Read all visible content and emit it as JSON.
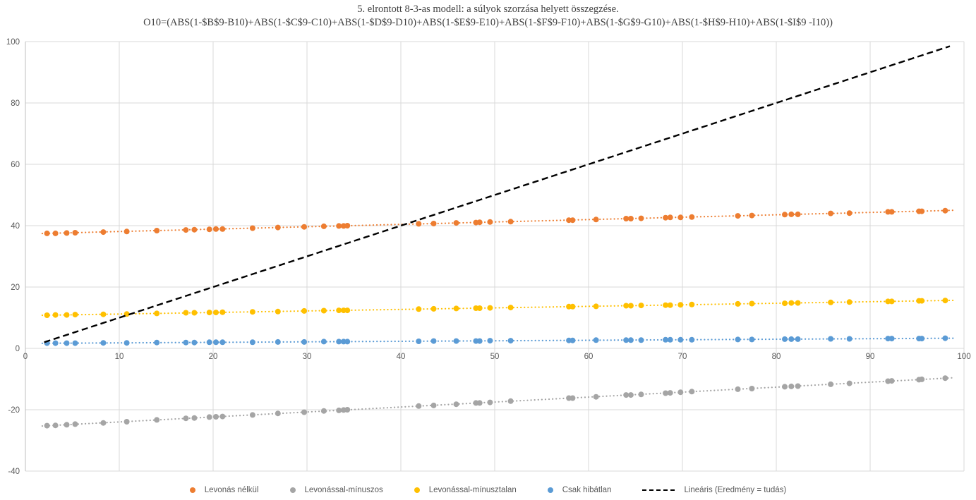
{
  "title": {
    "line1": "5. elrontott 8-3-as modell: a súlyok szorzása helyett összegzése.",
    "line2": "O10=(ABS(1-$B$9-B10)+ABS(1-$C$9-C10)+ABS(1-$D$9-D10)+ABS(1-$E$9-E10)+ABS(1-$F$9-F10)+ABS(1-$G$9-G10)+ABS(1-$H$9-H10)+ABS(1-$I$9 -I10))"
  },
  "chart_data": {
    "type": "scatter",
    "x": [
      2.3,
      3.2,
      4.4,
      5.3,
      8.3,
      10.8,
      14.0,
      17.1,
      18.0,
      19.6,
      20.3,
      21.0,
      24.2,
      26.9,
      29.7,
      31.8,
      33.4,
      33.9,
      34.3,
      41.9,
      43.5,
      45.9,
      48.0,
      48.4,
      49.5,
      51.7,
      57.9,
      58.3,
      60.8,
      64.0,
      64.5,
      65.6,
      68.2,
      68.7,
      69.8,
      71.0,
      75.9,
      77.4,
      80.9,
      81.6,
      82.3,
      85.8,
      87.8,
      91.9,
      92.3,
      95.2,
      95.5,
      98.0
    ],
    "series": [
      {
        "name": "Levonás nélkül",
        "color": "#ED7D31",
        "values": [
          37.5,
          37.5,
          37.6,
          37.7,
          37.9,
          38.1,
          38.4,
          38.6,
          38.7,
          38.8,
          38.9,
          38.9,
          39.2,
          39.4,
          39.6,
          39.8,
          39.9,
          39.9,
          40.0,
          40.6,
          40.7,
          40.9,
          41.0,
          41.1,
          41.2,
          41.3,
          41.8,
          41.8,
          42.0,
          42.3,
          42.3,
          42.4,
          42.6,
          42.7,
          42.7,
          42.8,
          43.2,
          43.3,
          43.6,
          43.7,
          43.7,
          44.0,
          44.1,
          44.5,
          44.5,
          44.7,
          44.7,
          44.9
        ],
        "trend": {
          "intercept": 37.3,
          "slope": 0.078
        }
      },
      {
        "name": "Levonással-mínuszos",
        "color": "#A5A5A5",
        "values": [
          -25.2,
          -25.1,
          -24.9,
          -24.7,
          -24.3,
          -23.9,
          -23.3,
          -22.8,
          -22.7,
          -22.4,
          -22.3,
          -22.2,
          -21.7,
          -21.2,
          -20.8,
          -20.4,
          -20.2,
          -20.1,
          -20.0,
          -18.8,
          -18.6,
          -18.2,
          -17.8,
          -17.8,
          -17.6,
          -17.2,
          -16.2,
          -16.2,
          -15.8,
          -15.2,
          -15.2,
          -15.0,
          -14.6,
          -14.5,
          -14.3,
          -14.1,
          -13.3,
          -13.1,
          -12.5,
          -12.4,
          -12.3,
          -11.7,
          -11.4,
          -10.7,
          -10.6,
          -10.2,
          -10.1,
          -9.7
        ],
        "trend": {
          "intercept": -25.6,
          "slope": 0.162
        }
      },
      {
        "name": "Levonással-mínusztalan",
        "color": "#FFC000",
        "values": [
          10.8,
          10.9,
          10.9,
          11.0,
          11.1,
          11.2,
          11.4,
          11.6,
          11.6,
          11.7,
          11.7,
          11.8,
          11.9,
          12.0,
          12.2,
          12.3,
          12.4,
          12.4,
          12.4,
          12.8,
          12.9,
          13.0,
          13.1,
          13.1,
          13.2,
          13.3,
          13.6,
          13.6,
          13.7,
          13.9,
          13.9,
          14.0,
          14.1,
          14.1,
          14.2,
          14.3,
          14.5,
          14.6,
          14.7,
          14.8,
          14.8,
          15.0,
          15.1,
          15.3,
          15.3,
          15.5,
          15.5,
          15.6
        ],
        "trend": {
          "intercept": 10.7,
          "slope": 0.05
        }
      },
      {
        "name": "Csak hibátlan",
        "color": "#5B9BD5",
        "values": [
          1.7,
          1.7,
          1.7,
          1.7,
          1.8,
          1.8,
          1.9,
          1.9,
          1.9,
          2.0,
          2.0,
          2.0,
          2.0,
          2.1,
          2.1,
          2.2,
          2.2,
          2.2,
          2.2,
          2.3,
          2.4,
          2.4,
          2.4,
          2.4,
          2.5,
          2.5,
          2.6,
          2.6,
          2.7,
          2.7,
          2.7,
          2.7,
          2.8,
          2.8,
          2.8,
          2.8,
          2.9,
          2.9,
          3.0,
          3.0,
          3.0,
          3.1,
          3.1,
          3.2,
          3.2,
          3.2,
          3.2,
          3.3
        ],
        "trend": {
          "intercept": 1.62,
          "slope": 0.017
        }
      }
    ],
    "reference_line": {
      "name": "Lineáris (Eredmény = tudás)",
      "color": "#000000",
      "style": "dashed",
      "x1": 2,
      "y1": 2,
      "x2": 98.5,
      "y2": 98.5
    },
    "xlim": [
      0,
      100
    ],
    "ylim": [
      -40,
      100
    ],
    "x_ticks": [
      0,
      10,
      20,
      30,
      40,
      50,
      60,
      70,
      80,
      90,
      100
    ],
    "y_ticks": [
      -40,
      -20,
      0,
      20,
      40,
      60,
      80,
      100
    ],
    "grid": true,
    "legend_position": "bottom",
    "trend_x_range": [
      1.8,
      99.0
    ]
  },
  "legend": {
    "items": [
      {
        "label": "Levonás nélkül",
        "marker": "dot",
        "color": "#ED7D31"
      },
      {
        "label": "Levonással-mínuszos",
        "marker": "dot",
        "color": "#A5A5A5"
      },
      {
        "label": "Levonással-mínusztalan",
        "marker": "dot",
        "color": "#FFC000"
      },
      {
        "label": "Csak hibátlan",
        "marker": "dot",
        "color": "#5B9BD5"
      },
      {
        "label": "Lineáris (Eredmény = tudás)",
        "marker": "dashed-line",
        "color": "#000000"
      }
    ]
  },
  "colors": {
    "gridline": "#D9D9D9",
    "axis_line": "#BFBFBF",
    "tick_label": "#595959",
    "title_text": "#3F3F3F",
    "background": "#FFFFFF"
  }
}
